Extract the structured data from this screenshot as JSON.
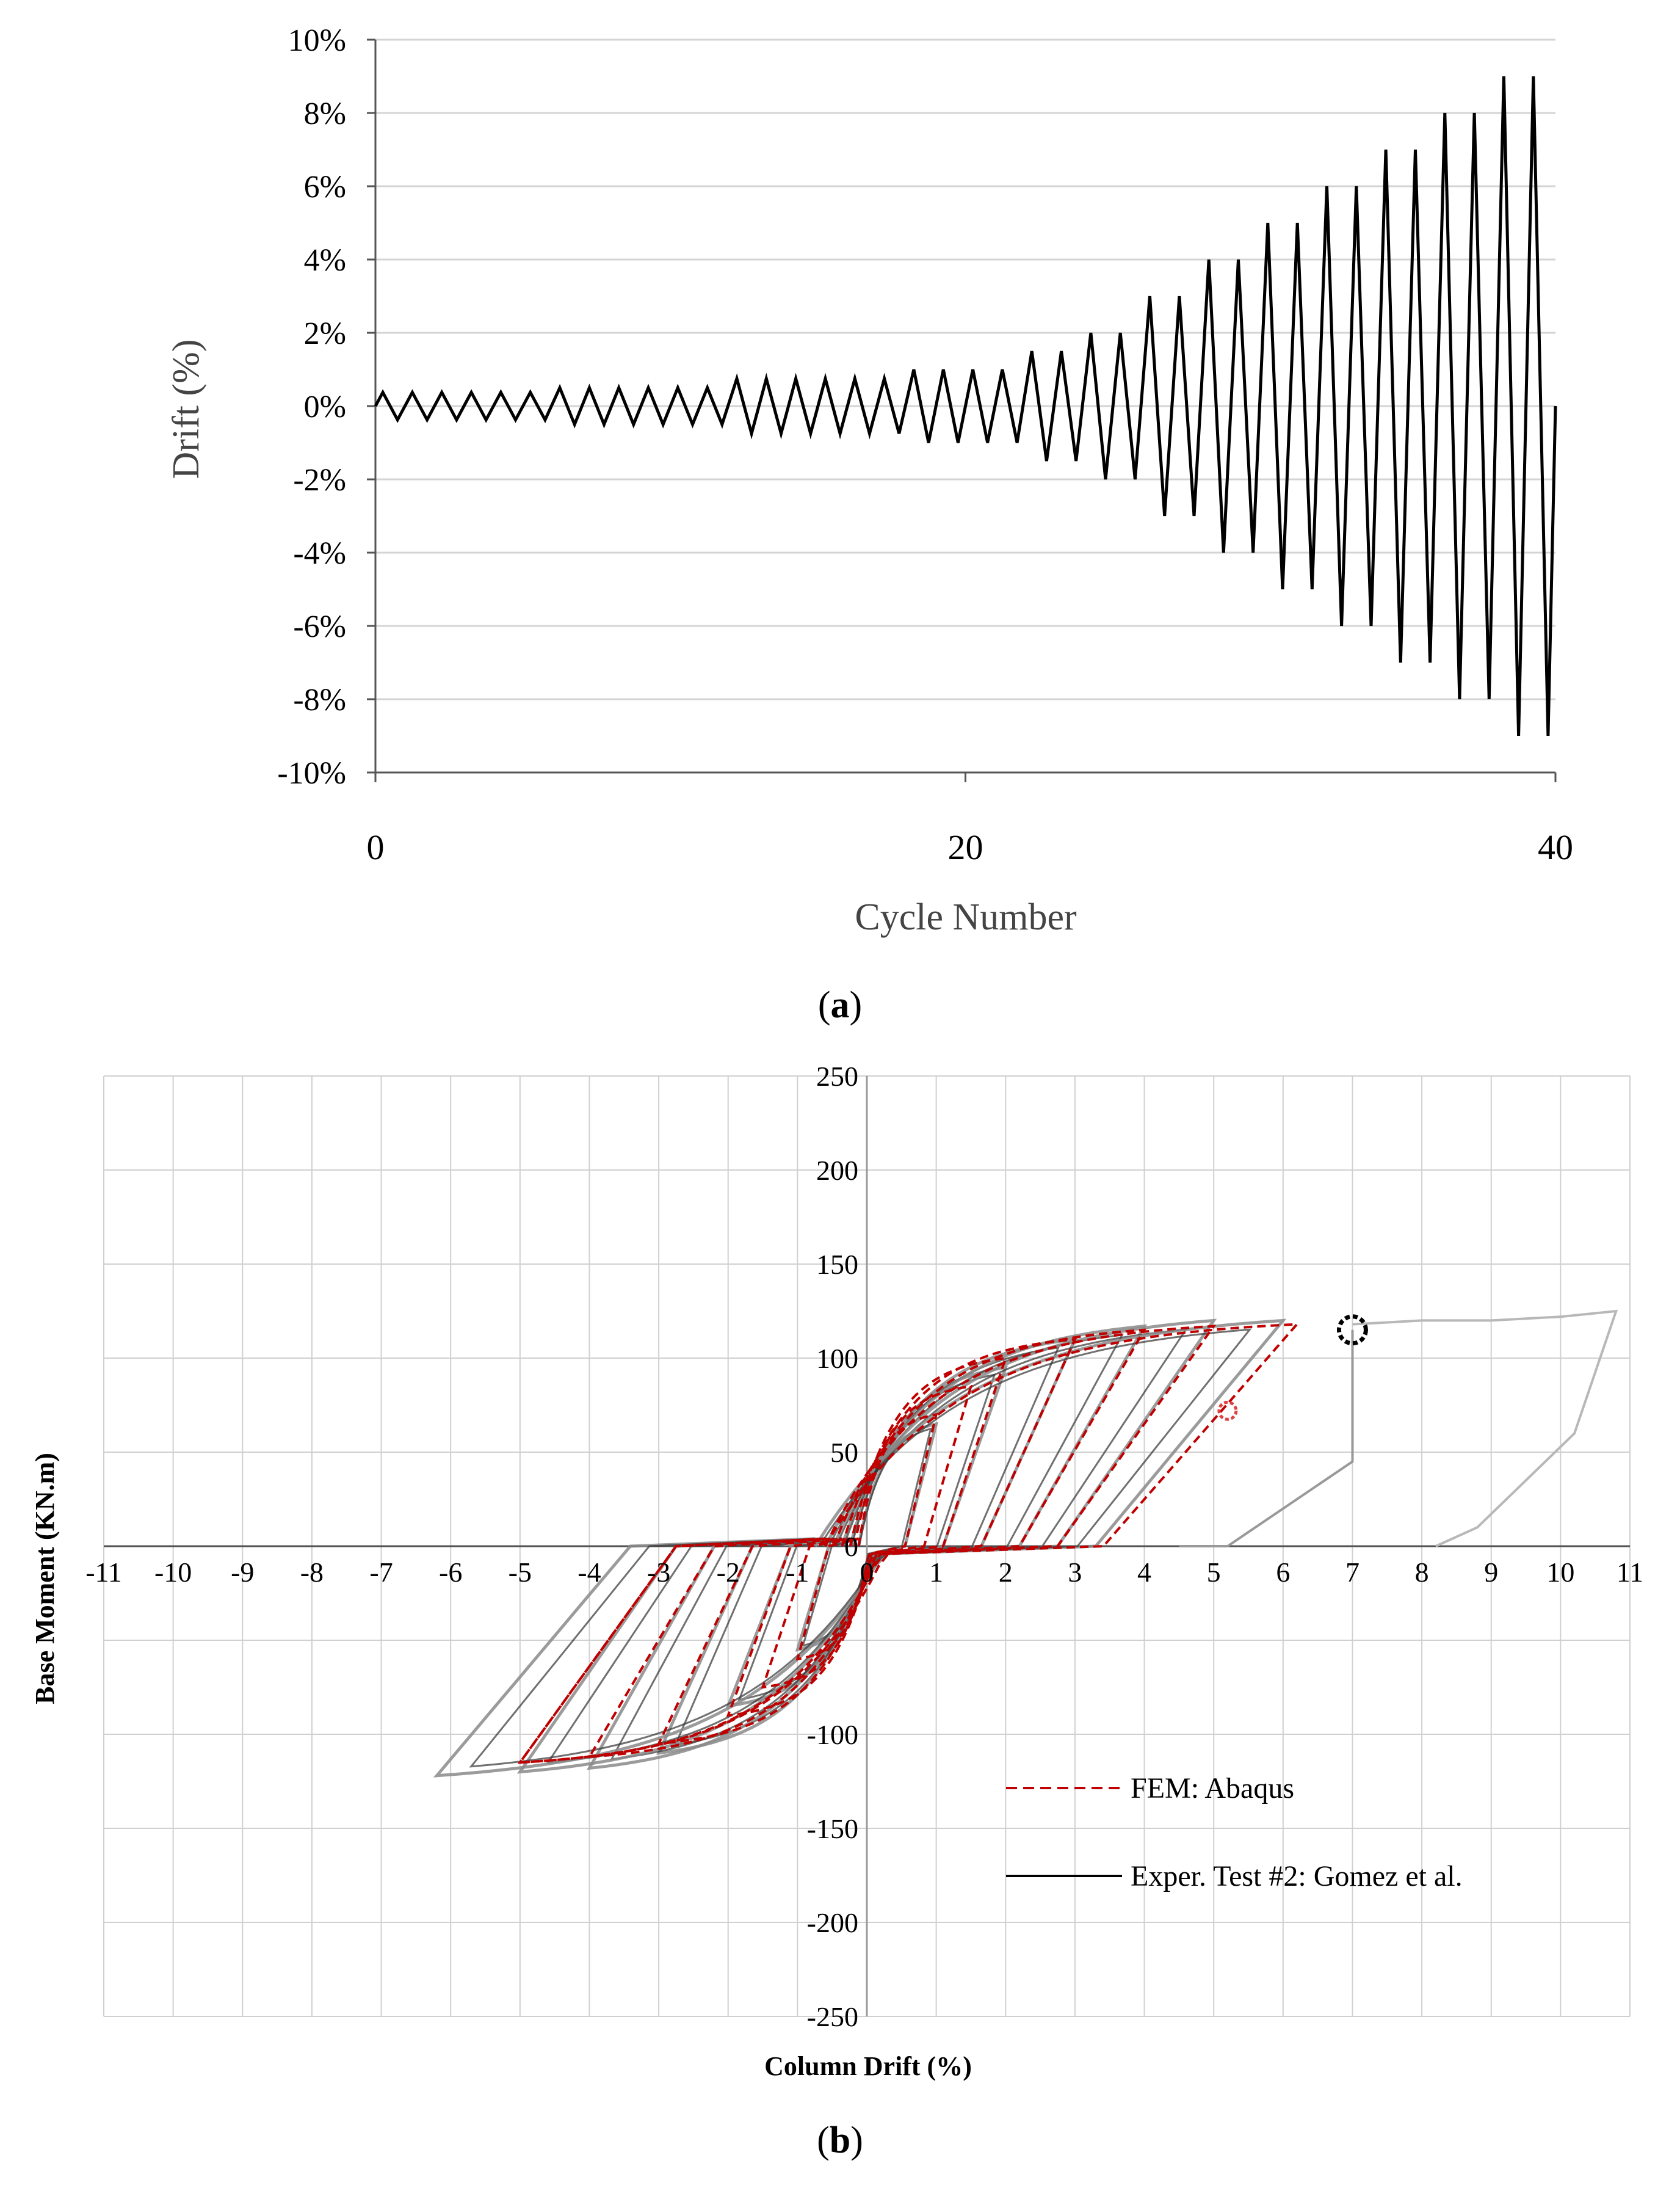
{
  "panel_a_label": "a",
  "panel_b_label": "b",
  "chart_data": [
    {
      "id": "a",
      "type": "line",
      "title": "",
      "xlabel": "Cycle Number",
      "ylabel": "Drift (%)",
      "xlim": [
        0,
        40
      ],
      "ylim": [
        -10,
        10
      ],
      "x_ticks": [
        0,
        20,
        40
      ],
      "x_tick_labels": [
        "0",
        "20",
        "40"
      ],
      "y_ticks": [
        10,
        8,
        6,
        4,
        2,
        0,
        -2,
        -4,
        -6,
        -8,
        -10
      ],
      "y_tick_labels": [
        "10%",
        "8%",
        "6%",
        "4%",
        "2%",
        "0%",
        "-2%",
        "-4%",
        "-6%",
        "-8%",
        "-10%"
      ],
      "grid": true,
      "series": [
        {
          "name": "Loading protocol",
          "color": "#000000",
          "cycle_amplitudes": [
            0.375,
            0.375,
            0.375,
            0.375,
            0.375,
            0.375,
            0.5,
            0.5,
            0.5,
            0.5,
            0.5,
            0.5,
            0.75,
            0.75,
            0.75,
            0.75,
            0.75,
            0.75,
            1.0,
            1.0,
            1.0,
            1.0,
            1.5,
            1.5,
            2.0,
            2.0,
            3.0,
            3.0,
            4.0,
            4.0,
            5.0,
            5.0,
            6.0,
            6.0,
            7.0,
            7.0,
            8.0,
            8.0,
            9.0,
            9.0
          ]
        }
      ]
    },
    {
      "id": "b",
      "type": "line",
      "title": "",
      "xlabel": "Column Drift (%)",
      "ylabel": "Base Moment (KN.m)",
      "xlim": [
        -11,
        11
      ],
      "ylim": [
        -250,
        250
      ],
      "x_ticks": [
        -11,
        -10,
        -9,
        -8,
        -7,
        -6,
        -5,
        -4,
        -3,
        -2,
        -1,
        0,
        1,
        2,
        3,
        4,
        5,
        6,
        7,
        8,
        9,
        10,
        11
      ],
      "x_tick_labels": [
        "-11",
        "-10",
        "-9",
        "-8",
        "-7",
        "-6",
        "-5",
        "-4",
        "-3",
        "-2",
        "-1",
        "0",
        "1",
        "2",
        "3",
        "4",
        "5",
        "6",
        "7",
        "8",
        "9",
        "10",
        "11"
      ],
      "y_ticks": [
        250,
        200,
        150,
        100,
        50,
        0,
        -100,
        -150,
        -200,
        -250
      ],
      "y_tick_labels": [
        "250",
        "200",
        "150",
        "100",
        "50",
        "0",
        "-100",
        "-150",
        "-200",
        "-250"
      ],
      "grid": true,
      "legend_position": "bottom-right",
      "series": [
        {
          "name": "FEM: Abaqus",
          "color": "#c00000",
          "dash": true,
          "loops": [
            {
              "dmax": 1.0,
              "mmax": 70,
              "dmin": -1.0,
              "mmin": -60
            },
            {
              "dmax": 1.5,
              "mmax": 85,
              "dmin": -1.5,
              "mmin": -75
            },
            {
              "dmax": 2.0,
              "mmax": 100,
              "dmin": -2.0,
              "mmin": -90
            },
            {
              "dmax": 3.0,
              "mmax": 110,
              "dmin": -3.0,
              "mmin": -105
            },
            {
              "dmax": 4.0,
              "mmax": 115,
              "dmin": -4.0,
              "mmin": -112
            },
            {
              "dmax": 5.0,
              "mmax": 117,
              "dmin": -5.0,
              "mmin": -115
            },
            {
              "dmax": 6.2,
              "mmax": 118,
              "dmin": -5.0,
              "mmin": -115
            }
          ],
          "failure_marker": {
            "x": 5.2,
            "y": 72
          }
        },
        {
          "name": "Exper. Test #2: Gomez et al.",
          "color": "#000000",
          "dash": false,
          "loops": [
            {
              "dmax": 1.0,
              "mmax": 65,
              "dmin": -1.0,
              "mmin": -55
            },
            {
              "dmax": 2.0,
              "mmax": 95,
              "dmin": -2.0,
              "mmin": -85
            },
            {
              "dmax": 3.0,
              "mmax": 110,
              "dmin": -3.0,
              "mmin": -110
            },
            {
              "dmax": 4.0,
              "mmax": 117,
              "dmin": -4.0,
              "mmin": -118
            },
            {
              "dmax": 5.0,
              "mmax": 120,
              "dmin": -5.0,
              "mmin": -120
            },
            {
              "dmax": 6.0,
              "mmax": 120,
              "dmin": -6.2,
              "mmin": -122
            }
          ],
          "failure_marker": {
            "x": 7.0,
            "y": 115
          },
          "post_failure": [
            [
              7.0,
              118
            ],
            [
              8.0,
              120
            ],
            [
              9.0,
              120
            ],
            [
              10.0,
              122
            ],
            [
              10.8,
              125
            ],
            [
              10.2,
              60
            ],
            [
              8.8,
              10
            ],
            [
              8.2,
              0
            ]
          ]
        }
      ]
    }
  ]
}
